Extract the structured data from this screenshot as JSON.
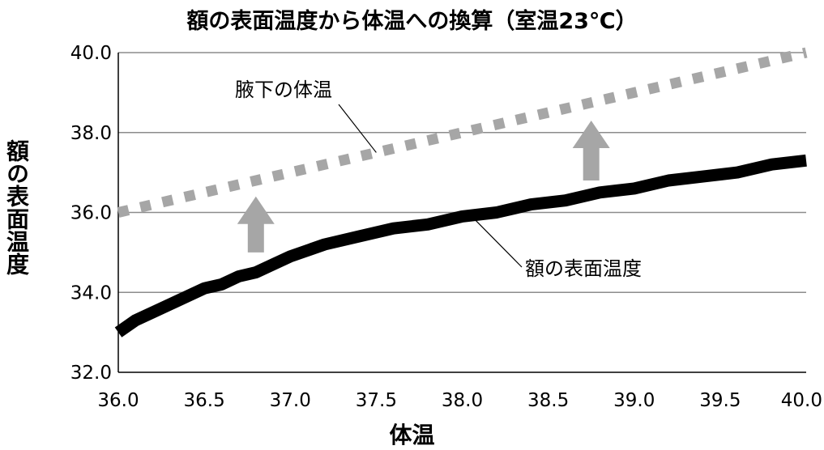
{
  "chart_data": {
    "type": "line",
    "title": "額の表面温度から体温への換算（室温23℃）",
    "xlabel": "体温",
    "ylabel": "額の表面温度",
    "xlim": [
      36.0,
      40.0
    ],
    "ylim": [
      32.0,
      40.0
    ],
    "xticks": [
      "36.0",
      "36.5",
      "37.0",
      "37.5",
      "38.0",
      "38.5",
      "39.0",
      "39.5",
      "40.0"
    ],
    "yticks": [
      "32.0",
      "34.0",
      "36.0",
      "38.0",
      "40.0"
    ],
    "grid": "horizontal",
    "series": [
      {
        "name": "腋下の体温",
        "style": "dotted",
        "color": "#a6a6a6",
        "x": [
          36.0,
          40.0
        ],
        "y": [
          36.0,
          40.0
        ]
      },
      {
        "name": "額の表面温度",
        "style": "solid",
        "color": "#000000",
        "x": [
          36.0,
          36.1,
          36.2,
          36.3,
          36.4,
          36.5,
          36.6,
          36.7,
          36.8,
          36.9,
          37.0,
          37.2,
          37.4,
          37.6,
          37.8,
          38.0,
          38.2,
          38.4,
          38.6,
          38.8,
          39.0,
          39.2,
          39.4,
          39.6,
          39.8,
          40.0
        ],
        "y": [
          33.0,
          33.3,
          33.5,
          33.7,
          33.9,
          34.1,
          34.2,
          34.4,
          34.5,
          34.7,
          34.9,
          35.2,
          35.4,
          35.6,
          35.7,
          35.9,
          36.0,
          36.2,
          36.3,
          36.5,
          36.6,
          36.8,
          36.9,
          37.0,
          37.2,
          37.3
        ]
      }
    ],
    "annotations": [
      {
        "text": "腋下の体温",
        "target_series": 0,
        "target_x": 37.5
      },
      {
        "text": "額の表面温度",
        "target_series": 1,
        "target_x": 38.05
      }
    ],
    "arrows": [
      {
        "x": 36.8,
        "from_y": 35.0,
        "to_y": 36.4,
        "color": "#a6a6a6"
      },
      {
        "x": 38.75,
        "from_y": 36.8,
        "to_y": 38.3,
        "color": "#a6a6a6"
      }
    ]
  }
}
